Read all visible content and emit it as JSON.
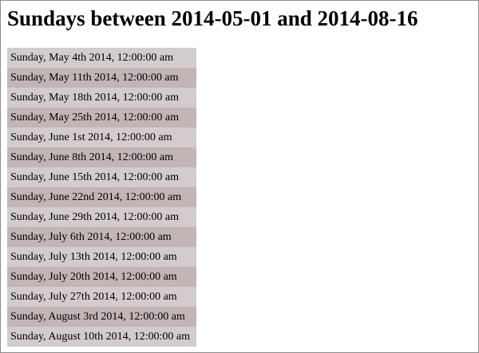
{
  "page": {
    "title": "Sundays between 2014-05-01 and 2014-08-16"
  },
  "sundays": [
    "Sunday, May 4th 2014, 12:00:00 am",
    "Sunday, May 11th 2014, 12:00:00 am",
    "Sunday, May 18th 2014, 12:00:00 am",
    "Sunday, May 25th 2014, 12:00:00 am",
    "Sunday, June 1st 2014, 12:00:00 am",
    "Sunday, June 8th 2014, 12:00:00 am",
    "Sunday, June 15th 2014, 12:00:00 am",
    "Sunday, June 22nd 2014, 12:00:00 am",
    "Sunday, June 29th 2014, 12:00:00 am",
    "Sunday, July 6th 2014, 12:00:00 am",
    "Sunday, July 13th 2014, 12:00:00 am",
    "Sunday, July 20th 2014, 12:00:00 am",
    "Sunday, July 27th 2014, 12:00:00 am",
    "Sunday, August 3rd 2014, 12:00:00 am",
    "Sunday, August 10th 2014, 12:00:00 am"
  ],
  "colors": {
    "row_light": "#d2cccd",
    "row_dark": "#c3b5b6"
  }
}
